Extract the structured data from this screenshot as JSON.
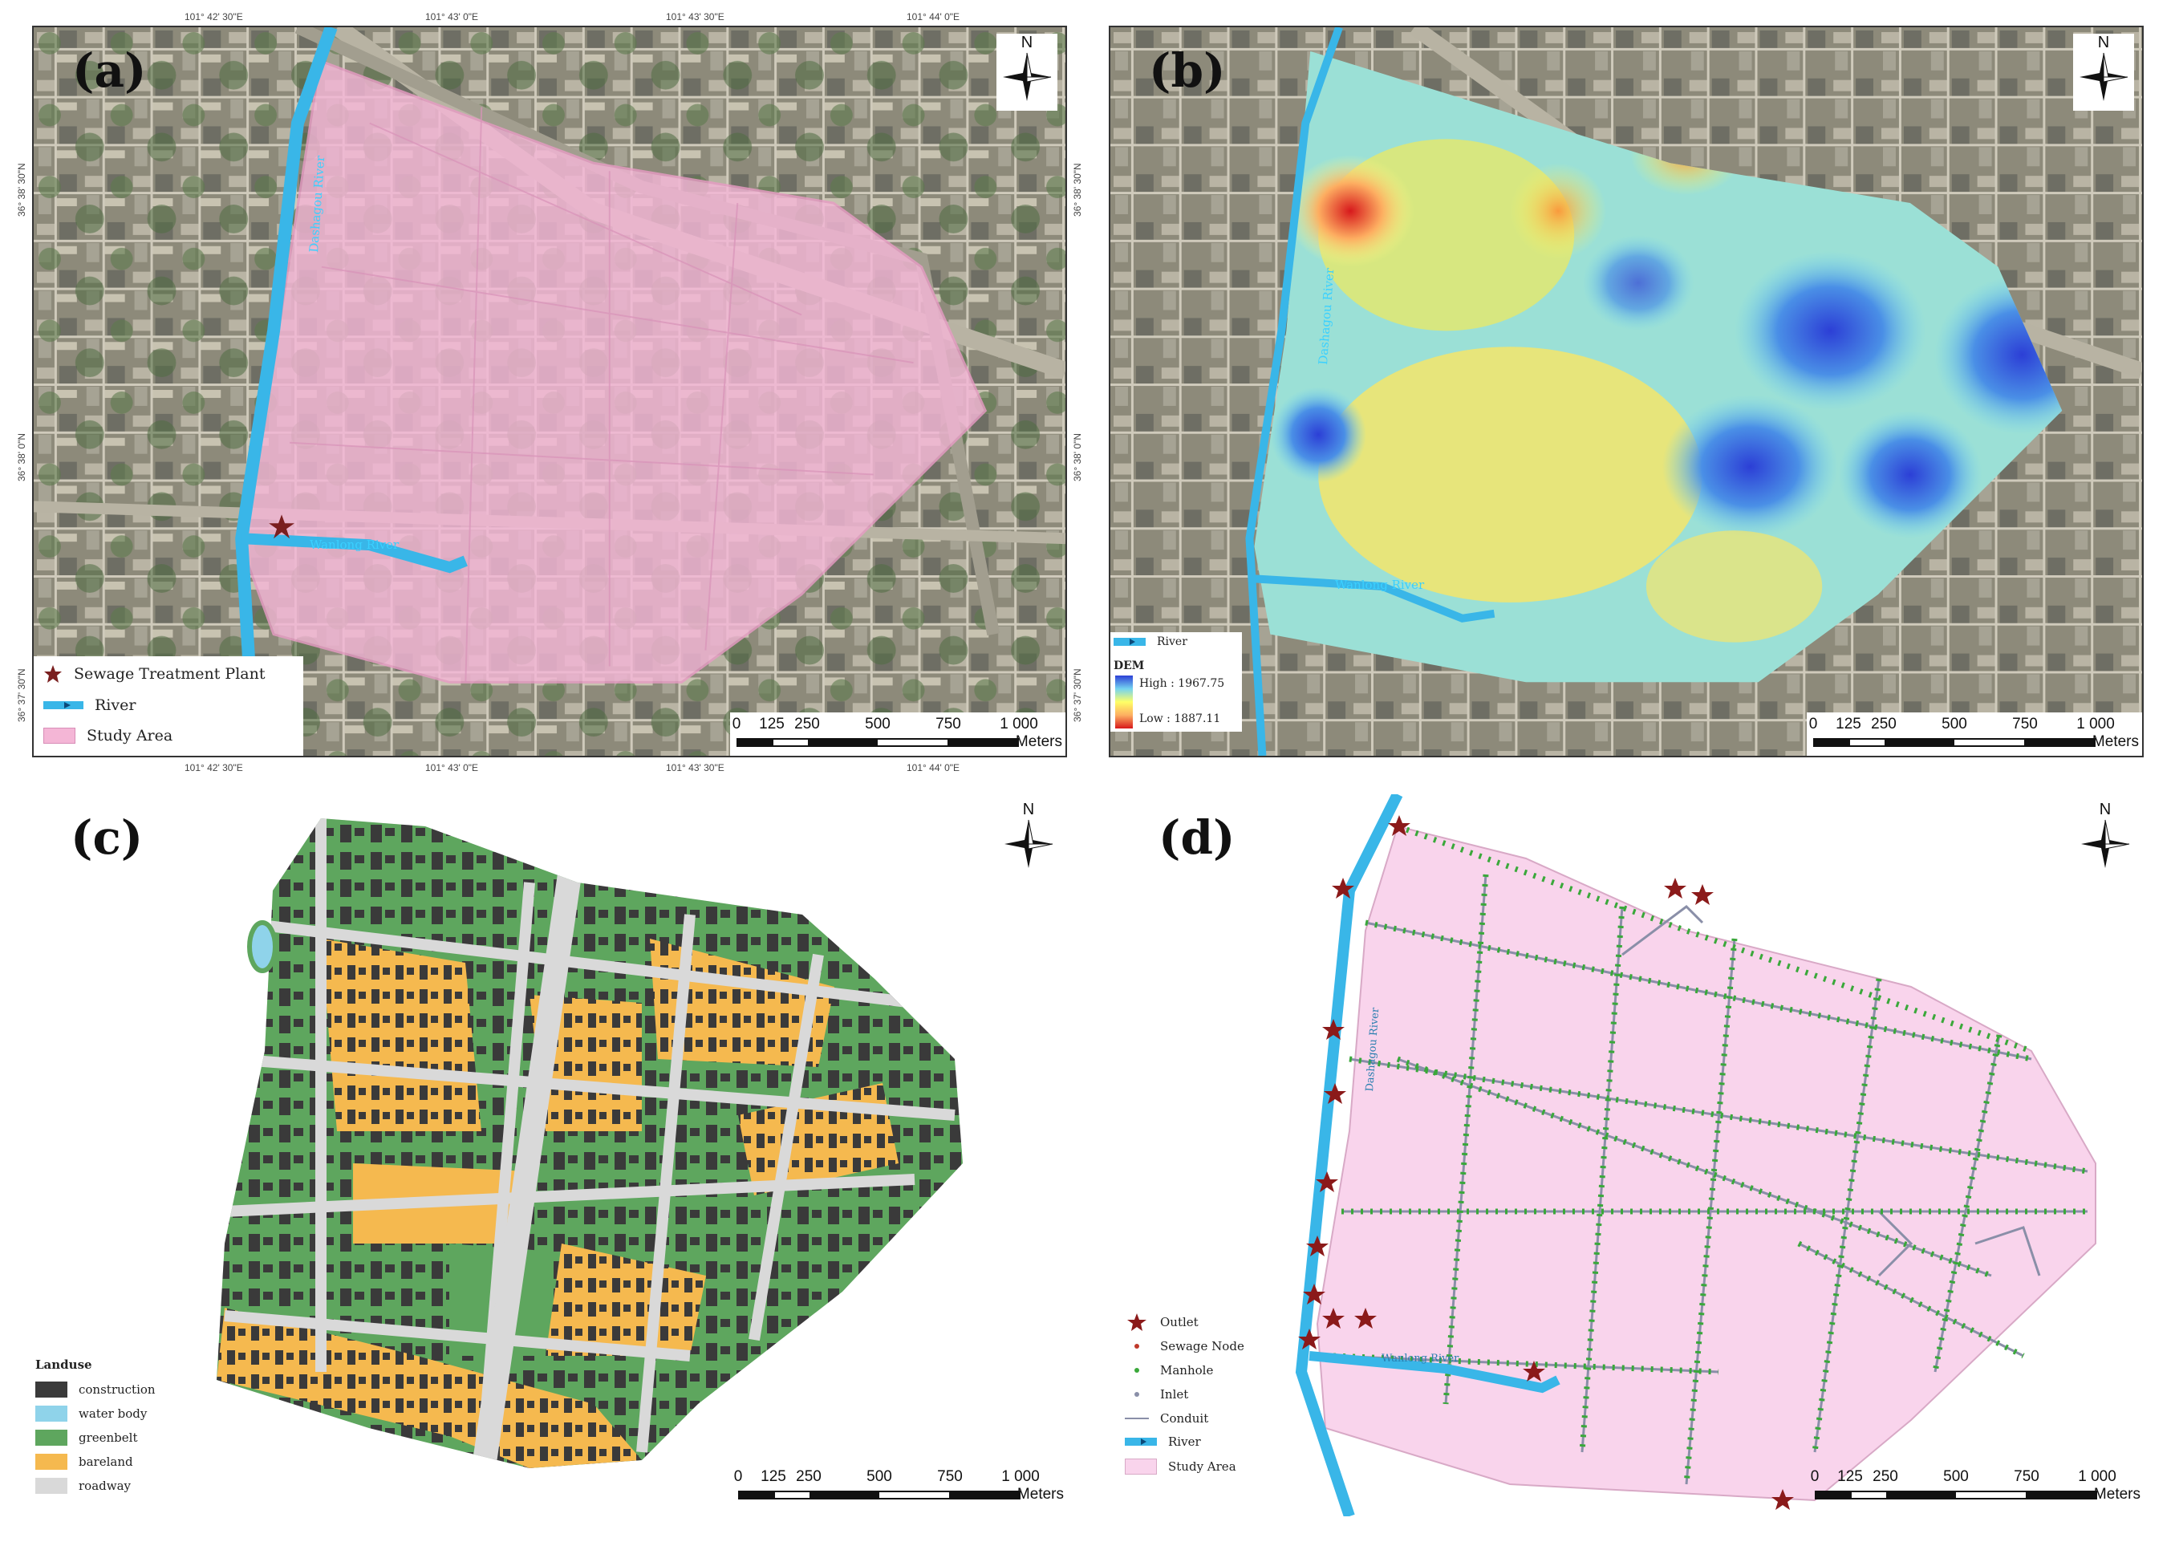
{
  "panels": {
    "a": {
      "letter": "(a)",
      "north": "N",
      "plant_label": "",
      "rivers": [
        "Dashagou River",
        "Wanlong River"
      ],
      "legend": {
        "sewage_plant": "Sewage Treatment Plant",
        "river": "River",
        "study_area": "Study Area"
      },
      "scale": {
        "ticks": [
          "0",
          "125",
          "250",
          "500",
          "750",
          "1 000"
        ],
        "unit": "Meters"
      },
      "colors": {
        "study_area": "#f4b6d6",
        "river": "#39b6e8",
        "star": "#7a1f1f"
      }
    },
    "b": {
      "letter": "(b)",
      "north": "N",
      "rivers": [
        "Dashagou River",
        "Wanlong River"
      ],
      "legend": {
        "river": "River",
        "dem_title": "DEM",
        "high": "High : 1967.75",
        "low": "Low : 1887.11"
      },
      "scale": {
        "ticks": [
          "0",
          "125",
          "250",
          "500",
          "750",
          "1 000"
        ],
        "unit": "Meters"
      },
      "colors": {
        "high": "#d7191c",
        "mid": "#ffff66",
        "low": "#2c3fd6"
      }
    },
    "c": {
      "letter": "(c)",
      "north": "N",
      "legend": {
        "title": "Landuse",
        "items": [
          {
            "label": "construction",
            "color": "#3a3a3a"
          },
          {
            "label": "water body",
            "color": "#8fd3ea"
          },
          {
            "label": "greenbelt",
            "color": "#5ea65e"
          },
          {
            "label": "bareland",
            "color": "#f5b94f"
          },
          {
            "label": "roadway",
            "color": "#d9d9d9"
          }
        ]
      },
      "scale": {
        "ticks": [
          "0",
          "125",
          "250",
          "500",
          "750",
          "1 000"
        ],
        "unit": "Meters"
      }
    },
    "d": {
      "letter": "(d)",
      "north": "N",
      "rivers": [
        "Dashagou River",
        "Wanlong River"
      ],
      "legend": {
        "items": [
          "Outlet",
          "Sewage Node",
          "Manhole",
          "Inlet",
          "Conduit",
          "River",
          "Study Area"
        ]
      },
      "scale": {
        "ticks": [
          "0",
          "125",
          "250",
          "500",
          "750",
          "1 000"
        ],
        "unit": "Meters"
      },
      "colors": {
        "study_area": "#f9d4ec",
        "conduit": "#8a8fa8",
        "manhole": "#3aa83a",
        "outlet": "#8b1a1a"
      }
    }
  },
  "coords": {
    "top_a": [
      "101° 42' 30\"E",
      "101° 43' 0\"E",
      "101° 43' 30\"E",
      "101° 44' 0\"E"
    ],
    "bottom_a": [
      "101° 42' 30\"E",
      "101° 43' 0\"E",
      "101° 43' 30\"E",
      "101° 44' 0\"E"
    ],
    "left_a": [
      "36° 38' 30\"N",
      "36° 38' 0\"N",
      "36° 37' 30\"N"
    ],
    "right_a": [
      "36° 38' 30\"N",
      "36° 38' 0\"N",
      "36° 37' 30\"N"
    ]
  }
}
